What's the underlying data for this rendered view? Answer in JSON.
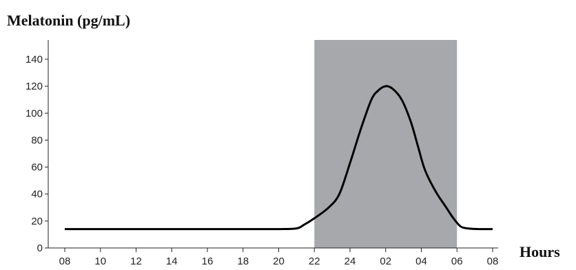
{
  "chart_data": {
    "type": "line",
    "title": "",
    "ylabel": "Melatonin (pg/mL)",
    "xlabel": "Hours",
    "x_ticks": [
      "08",
      "10",
      "12",
      "14",
      "16",
      "18",
      "20",
      "22",
      "24",
      "02",
      "04",
      "06",
      "08"
    ],
    "y_ticks": [
      0,
      20,
      40,
      60,
      80,
      100,
      120,
      140
    ],
    "ylim": [
      0,
      150
    ],
    "shaded_interval": {
      "from": "22",
      "to": "06",
      "color": "#a7a8ab"
    },
    "series": [
      {
        "color": "#000000",
        "x_hours_since_08": [
          0,
          2,
          4,
          6,
          8,
          10,
          12,
          13.0,
          13.4,
          14.0,
          14.8,
          15.4,
          16.0,
          16.6,
          17.2,
          17.6,
          18.0,
          18.4,
          18.9,
          19.4,
          19.8,
          20.2,
          20.8,
          21.4,
          21.8,
          22.2,
          22.6,
          23.2,
          24
        ],
        "y": [
          14,
          14,
          14,
          14,
          14,
          14,
          14,
          14.5,
          17,
          22,
          30,
          40,
          63,
          88,
          110,
          117,
          120,
          118,
          110,
          94,
          76,
          58,
          42,
          30,
          22,
          16,
          14.5,
          14,
          14
        ]
      }
    ]
  }
}
